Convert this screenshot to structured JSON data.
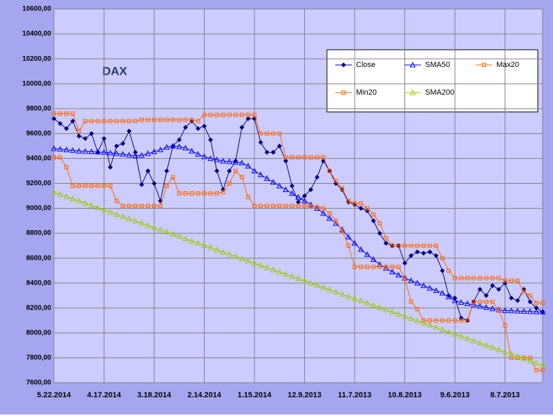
{
  "chart_data": {
    "type": "line",
    "title": "DAX",
    "categories": [
      "5.22.2014",
      null,
      null,
      null,
      null,
      null,
      null,
      null,
      "4.17.2014",
      null,
      null,
      null,
      null,
      null,
      null,
      null,
      "3.18.2014",
      null,
      null,
      null,
      null,
      null,
      null,
      null,
      "2.14.2014",
      null,
      null,
      null,
      null,
      null,
      null,
      null,
      "1.15.2014",
      null,
      null,
      null,
      null,
      null,
      null,
      null,
      "12.9.2013",
      null,
      null,
      null,
      null,
      null,
      null,
      null,
      "11.7.2013",
      null,
      null,
      null,
      null,
      null,
      null,
      null,
      "10.8.2013",
      null,
      null,
      null,
      null,
      null,
      null,
      null,
      "9.6.2013",
      null,
      null,
      null,
      null,
      null,
      null,
      null,
      "8.7.2013",
      null,
      null,
      null,
      null,
      null,
      null
    ],
    "ylim": [
      7600,
      10600
    ],
    "yticks": [
      {
        "value": 7600,
        "label": "7600,00"
      },
      {
        "value": 7800,
        "label": "7800,00"
      },
      {
        "value": 8000,
        "label": "8000,00"
      },
      {
        "value": 8200,
        "label": "8200,00"
      },
      {
        "value": 8400,
        "label": "8400,00"
      },
      {
        "value": 8600,
        "label": "8600,00"
      },
      {
        "value": 8800,
        "label": "8800,00"
      },
      {
        "value": 9000,
        "label": "9000,00"
      },
      {
        "value": 9200,
        "label": "9200,00"
      },
      {
        "value": 9400,
        "label": "9400,00"
      },
      {
        "value": 9600,
        "label": "9600,00"
      },
      {
        "value": 9800,
        "label": "9800,00"
      },
      {
        "value": 10000,
        "label": "10000,00"
      },
      {
        "value": 10200,
        "label": "10200,00"
      },
      {
        "value": 10400,
        "label": "10400,00"
      },
      {
        "value": 10600,
        "label": "10600,00"
      }
    ],
    "grid": true,
    "series": [
      {
        "name": "Close",
        "color": "#000080",
        "marker": "diamond",
        "values": [
          9720,
          9680,
          9640,
          9700,
          9580,
          9560,
          9600,
          9450,
          9560,
          9330,
          9500,
          9520,
          9620,
          9450,
          9190,
          9300,
          9200,
          9060,
          9300,
          9500,
          9550,
          9650,
          9700,
          9640,
          9660,
          9550,
          9300,
          9150,
          9300,
          9380,
          9650,
          9720,
          9720,
          9530,
          9450,
          9450,
          9500,
          9380,
          9180,
          9050,
          9100,
          9150,
          9250,
          9380,
          9300,
          9200,
          9150,
          9050,
          9030,
          9000,
          8980,
          8900,
          8800,
          8720,
          8700,
          8700,
          8560,
          8620,
          8650,
          8640,
          8650,
          8620,
          8500,
          8300,
          8280,
          8120,
          8100,
          8250,
          8350,
          8300,
          8380,
          8350,
          8400,
          8280,
          8260,
          8350,
          8250,
          8200,
          8170
        ]
      },
      {
        "name": "SMA50",
        "color": "#0000ff",
        "marker": "triangle",
        "values": [
          9480,
          9475,
          9470,
          9465,
          9460,
          9458,
          9455,
          9452,
          9450,
          9445,
          9440,
          9435,
          9428,
          9422,
          9425,
          9440,
          9455,
          9470,
          9490,
          9500,
          9495,
          9485,
          9460,
          9435,
          9415,
          9400,
          9390,
          9380,
          9375,
          9370,
          9365,
          9340,
          9300,
          9270,
          9240,
          9210,
          9180,
          9150,
          9120,
          9090,
          9060,
          9030,
          9000,
          8960,
          8920,
          8880,
          8830,
          8770,
          8720,
          8670,
          8630,
          8590,
          8550,
          8520,
          8490,
          8465,
          8440,
          8420,
          8400,
          8380,
          8360,
          8340,
          8320,
          8290,
          8260,
          8245,
          8235,
          8225,
          8215,
          8205,
          8195,
          8185,
          8180,
          8178,
          8176,
          8174,
          8172,
          8170,
          8168
        ]
      },
      {
        "name": "Max20",
        "color": "#ff6600",
        "marker": "square",
        "values": [
          9760,
          9760,
          9760,
          9760,
          9620,
          9700,
          9700,
          9700,
          9700,
          9700,
          9700,
          9700,
          9700,
          9700,
          9710,
          9710,
          9710,
          9710,
          9710,
          9710,
          9710,
          9710,
          9710,
          9700,
          9750,
          9750,
          9750,
          9750,
          9750,
          9750,
          9750,
          9750,
          9750,
          9600,
          9600,
          9600,
          9600,
          9410,
          9410,
          9410,
          9410,
          9410,
          9410,
          9410,
          9300,
          9220,
          9160,
          9060,
          9040,
          9040,
          9000,
          8950,
          8880,
          8760,
          8700,
          8700,
          8700,
          8700,
          8700,
          8700,
          8700,
          8700,
          8600,
          8500,
          8440,
          8440,
          8440,
          8440,
          8440,
          8440,
          8440,
          8440,
          8420,
          8420,
          8420,
          8330,
          8300,
          8240,
          8240
        ]
      },
      {
        "name": "Min20",
        "color": "#ff6600",
        "marker": "square",
        "values": [
          9410,
          9410,
          9330,
          9180,
          9180,
          9180,
          9180,
          9180,
          9180,
          9180,
          9060,
          9020,
          9020,
          9020,
          9020,
          9020,
          9020,
          9020,
          9180,
          9250,
          9120,
          9120,
          9120,
          9120,
          9120,
          9120,
          9120,
          9130,
          9200,
          9300,
          9250,
          9090,
          9020,
          9020,
          9020,
          9020,
          9020,
          9020,
          9020,
          9020,
          9020,
          9020,
          9010,
          9000,
          8960,
          8900,
          8820,
          8700,
          8530,
          8530,
          8530,
          8530,
          8530,
          8530,
          8530,
          8530,
          8440,
          8250,
          8190,
          8100,
          8100,
          8100,
          8100,
          8100,
          8100,
          8100,
          8100,
          8250,
          8250,
          8250,
          8250,
          8180,
          8060,
          7800,
          7800,
          7800,
          7800,
          7700,
          7700
        ]
      },
      {
        "name": "SMA200",
        "color": "#99cc00",
        "marker": "triangle",
        "values": [
          9130,
          9112,
          9094,
          9077,
          9059,
          9041,
          9023,
          9005,
          8988,
          8970,
          8952,
          8934,
          8916,
          8899,
          8881,
          8863,
          8845,
          8827,
          8810,
          8792,
          8774,
          8756,
          8738,
          8721,
          8703,
          8685,
          8667,
          8649,
          8632,
          8614,
          8596,
          8578,
          8560,
          8543,
          8525,
          8507,
          8489,
          8471,
          8454,
          8436,
          8418,
          8400,
          8382,
          8365,
          8347,
          8329,
          8311,
          8293,
          8276,
          8258,
          8240,
          8222,
          8204,
          8187,
          8169,
          8151,
          8133,
          8115,
          8098,
          8080,
          8062,
          8044,
          8026,
          8009,
          7991,
          7973,
          7955,
          7937,
          7920,
          7902,
          7884,
          7866,
          7848,
          7831,
          7813,
          7795,
          7777,
          7759,
          7742
        ]
      }
    ]
  }
}
